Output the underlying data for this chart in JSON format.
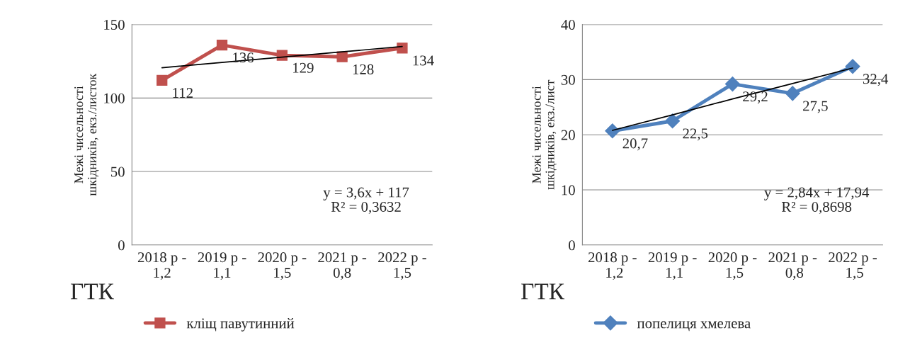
{
  "chart_data": [
    {
      "type": "line",
      "categories": [
        "2018 р -1,2",
        "2019 р -1,1",
        "2020 р -1,5",
        "2021 р -0,8",
        "2022 р -1,5"
      ],
      "ylabel": "Межі чисельності\nшкідників, екз./листок",
      "ylim": [
        0,
        150
      ],
      "yticks": [
        0,
        50,
        100,
        150
      ],
      "grid": "y",
      "legend": "bottom",
      "series": [
        {
          "name": "кліщ павутинний",
          "color": "#c0504d",
          "values": [
            112,
            136,
            129,
            128,
            134
          ],
          "marker": "square",
          "data_labels": true
        },
        {
          "type": "line",
          "color": "#000000",
          "values": [
            120.6,
            124.2,
            127.8,
            131.4,
            135
          ],
          "marker": "none"
        }
      ],
      "annotations": [
        "y = 3,6x + 117\nR² = 0,3632",
        "ГТК"
      ]
    },
    {
      "type": "line",
      "categories": [
        "2018 р - 1,2",
        "2019 р - 1,1",
        "2020 р - 1,5",
        "2021 р - 0,8",
        "2022 р - 1,5"
      ],
      "ylabel": "Межі чисельності\nшкідників, екз./лист",
      "ylim": [
        0,
        40
      ],
      "yticks": [
        0,
        10,
        20,
        30,
        40
      ],
      "grid": "y",
      "legend": "bottom",
      "series": [
        {
          "name": "попелиця хмелева",
          "color": "#4f81bd",
          "values": [
            20.7,
            22.5,
            29.2,
            27.5,
            32.4
          ],
          "marker": "diamond",
          "value_labels": [
            "20,7",
            "22,5",
            "29,2",
            "27,5",
            "32,4"
          ]
        },
        {
          "type": "line",
          "color": "#000000",
          "values": [
            20.8,
            23.6,
            26.5,
            29.3,
            32.1
          ],
          "marker": "none"
        }
      ],
      "annotations": [
        "y = 2,84x + 17,94\nR² = 0,8698",
        "ГТК"
      ]
    }
  ]
}
